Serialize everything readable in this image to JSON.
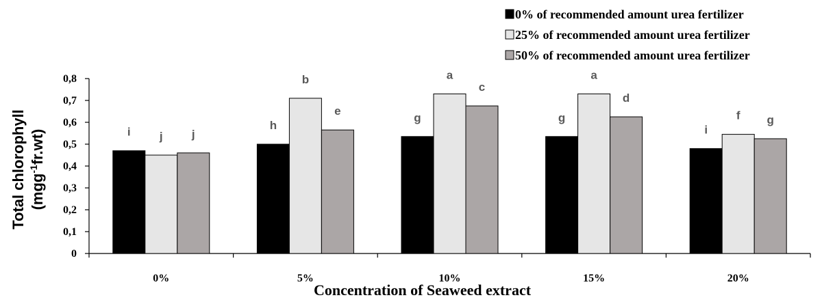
{
  "chart_data": {
    "type": "bar",
    "categories": [
      "0%",
      "5%",
      "10%",
      "15%",
      "20%"
    ],
    "series": [
      {
        "name": "0% of recommended amount urea fertilizer",
        "color": "#000000",
        "values": [
          0.47,
          0.5,
          0.535,
          0.535,
          0.48
        ],
        "letters": [
          "i",
          "h",
          "g",
          "g",
          "i"
        ]
      },
      {
        "name": "25% of recommended amount urea fertilizer",
        "color": "#e6e6e6",
        "values": [
          0.45,
          0.71,
          0.73,
          0.73,
          0.545
        ],
        "letters": [
          "j",
          "b",
          "a",
          "a",
          "f"
        ]
      },
      {
        "name": "50% of recommended amount urea fertilizer",
        "color": "#aba6a6",
        "values": [
          0.46,
          0.565,
          0.675,
          0.625,
          0.525
        ],
        "letters": [
          "j",
          "e",
          "c",
          "d",
          "g"
        ]
      }
    ],
    "xlabel": "Concentration of Seaweed extract",
    "ylabel_line1": "Total chlorophyll",
    "ylabel_line2_pre": "(mgg",
    "ylabel_line2_sup": "-1",
    "ylabel_line2_post": "fr.wt)",
    "ylim": [
      0,
      0.8
    ],
    "yticks": [
      "0",
      "0,1",
      "0,2",
      "0,3",
      "0,4",
      "0,5",
      "0,6",
      "0,7",
      "0,8"
    ],
    "legend_position": "top-right",
    "grid": false
  }
}
